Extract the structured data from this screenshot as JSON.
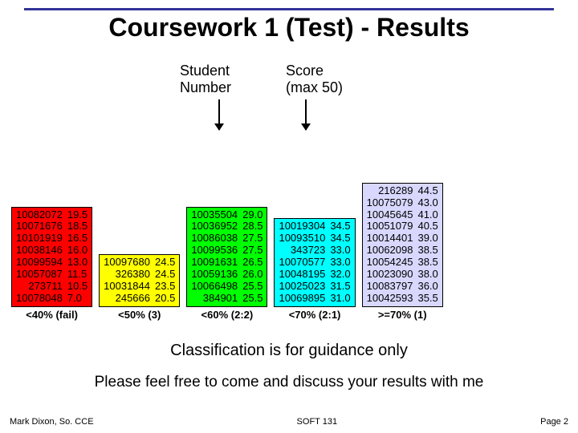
{
  "title": "Coursework 1 (Test) - Results",
  "title_rule_color": "#333399",
  "header": {
    "student_label": "Student\nNumber",
    "score_label": "Score\n(max 50)"
  },
  "guidance_text": "Classification is for guidance only",
  "discuss_text": "Please feel free to come and discuss your results with me",
  "footer": {
    "left": "Mark Dixon, So. CCE",
    "center": "SOFT 131",
    "right": "Page 2"
  },
  "groups": [
    {
      "label": "<40% (fail)",
      "bg": "#ff0000",
      "text": "#000000",
      "rows": [
        [
          "10082072",
          "19.5"
        ],
        [
          "10071676",
          "18.5"
        ],
        [
          "10101919",
          "16.5"
        ],
        [
          "10038146",
          "16.0"
        ],
        [
          "10099594",
          "13.0"
        ],
        [
          "10057087",
          "11.5"
        ],
        [
          "273711",
          "10.5"
        ],
        [
          "10078048",
          "7.0"
        ]
      ]
    },
    {
      "label": "<50% (3)",
      "bg": "#ffff00",
      "text": "#000000",
      "rows": [
        [
          "10097680",
          "24.5"
        ],
        [
          "326380",
          "24.5"
        ],
        [
          "10031844",
          "23.5"
        ],
        [
          "245666",
          "20.5"
        ]
      ]
    },
    {
      "label": "<60% (2:2)",
      "bg": "#00ff00",
      "text": "#000000",
      "rows": [
        [
          "10035504",
          "29.0"
        ],
        [
          "10036952",
          "28.5"
        ],
        [
          "10086038",
          "27.5"
        ],
        [
          "10099536",
          "27.5"
        ],
        [
          "10091631",
          "26.5"
        ],
        [
          "10059136",
          "26.0"
        ],
        [
          "10066498",
          "25.5"
        ],
        [
          "384901",
          "25.5"
        ]
      ]
    },
    {
      "label": "<70% (2:1)",
      "bg": "#00ffff",
      "text": "#000000",
      "rows": [
        [
          "10019304",
          "34.5"
        ],
        [
          "10093510",
          "34.5"
        ],
        [
          "343723",
          "33.0"
        ],
        [
          "10070577",
          "33.0"
        ],
        [
          "10048195",
          "32.0"
        ],
        [
          "10025023",
          "31.5"
        ],
        [
          "10069895",
          "31.0"
        ]
      ]
    },
    {
      "label": ">=70% (1)",
      "bg": "#d8d8ff",
      "text": "#000000",
      "rows": [
        [
          "216289",
          "44.5"
        ],
        [
          "10075079",
          "43.0"
        ],
        [
          "10045645",
          "41.0"
        ],
        [
          "10051079",
          "40.5"
        ],
        [
          "10014401",
          "39.0"
        ],
        [
          "10062098",
          "38.5"
        ],
        [
          "10054245",
          "38.5"
        ],
        [
          "10023090",
          "38.0"
        ],
        [
          "10083797",
          "36.0"
        ],
        [
          "10042593",
          "35.5"
        ]
      ]
    }
  ],
  "fonts": {
    "title_size": 32,
    "body_size": 18,
    "group_size": 13,
    "footer_size": 11
  }
}
